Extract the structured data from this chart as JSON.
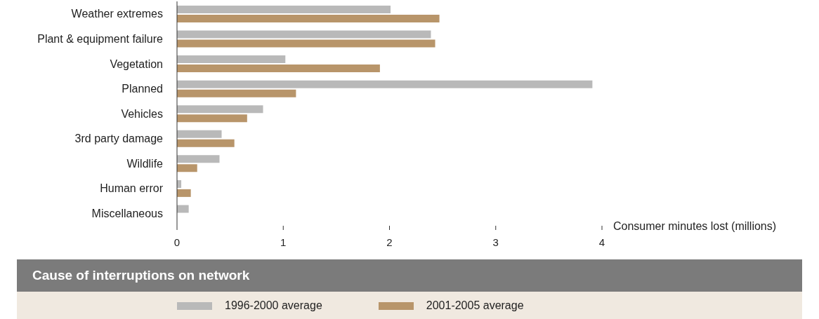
{
  "chart_data": {
    "type": "bar",
    "orientation": "horizontal",
    "title": "Cause of interruptions on network",
    "xlabel": "Consumer minutes lost (millions)",
    "categories": [
      "Weather extremes",
      "Plant & equipment failure",
      "Vegetation",
      "Planned",
      "Vehicles",
      "3rd party damage",
      "Wildlife",
      "Human error",
      "Miscellaneous"
    ],
    "series": [
      {
        "name": "1996-2000 average",
        "color": "#b9b9b9",
        "values": [
          2.01,
          2.39,
          1.02,
          3.91,
          0.81,
          0.42,
          0.4,
          0.04,
          0.11
        ]
      },
      {
        "name": "2001-2005 average",
        "color": "#b8956a",
        "values": [
          2.47,
          2.43,
          1.91,
          1.12,
          0.66,
          0.54,
          0.19,
          0.13,
          null
        ]
      }
    ],
    "xlim": [
      0,
      4
    ],
    "xticks": [
      0,
      1,
      2,
      3,
      4
    ],
    "legend": "bottom"
  }
}
